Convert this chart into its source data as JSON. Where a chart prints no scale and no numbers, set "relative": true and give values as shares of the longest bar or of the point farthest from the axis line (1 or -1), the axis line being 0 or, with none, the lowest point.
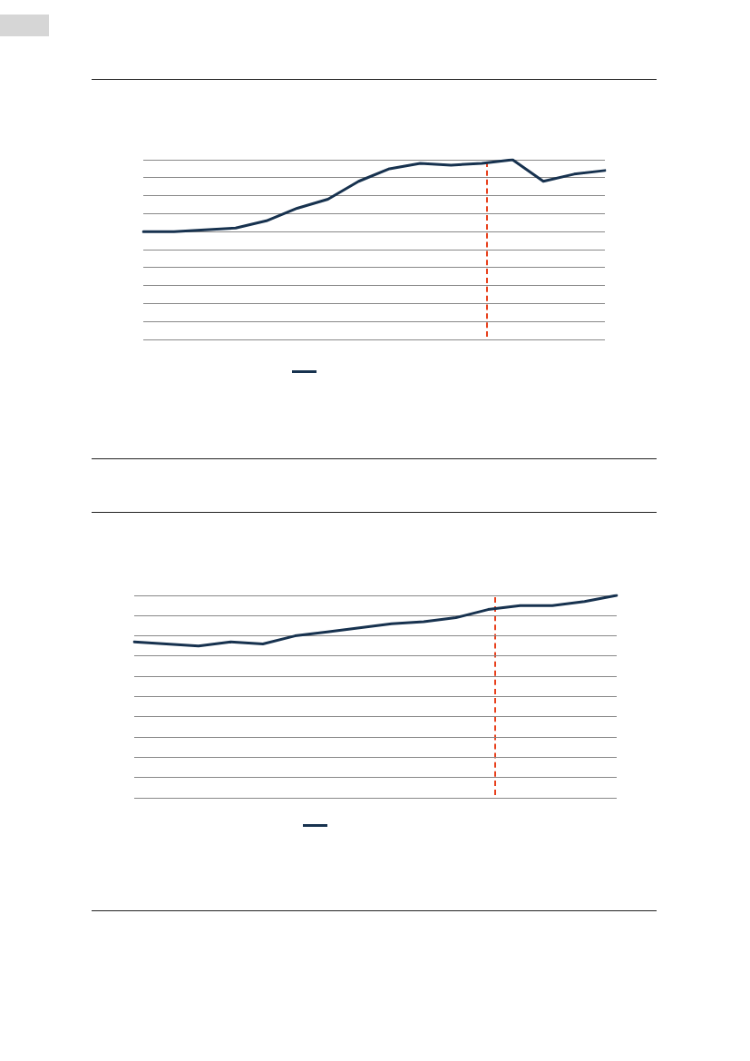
{
  "chart_data": [
    {
      "type": "line",
      "relative": true,
      "categories": [
        null,
        null,
        null,
        null,
        null,
        null,
        null,
        null,
        null,
        null,
        null,
        null,
        null,
        null,
        null,
        null
      ],
      "series": [
        {
          "color": "#17324f",
          "values": [
            0.6,
            0.6,
            0.61,
            0.62,
            0.66,
            0.73,
            0.78,
            0.88,
            0.95,
            0.98,
            0.97,
            0.98,
            1,
            0.88,
            0.92,
            0.94
          ]
        }
      ],
      "grid": "y",
      "marker": "none",
      "line_style": "solid"
    },
    {
      "type": "line",
      "relative": true,
      "categories": [
        null,
        null,
        null,
        null,
        null,
        null,
        null,
        null,
        null,
        null,
        null,
        null,
        null,
        null,
        null,
        null
      ],
      "series": [
        {
          "color": "#17324f",
          "values": [
            0.77,
            0.76,
            0.75,
            0.77,
            0.76,
            0.8,
            0.82,
            0.84,
            0.86,
            0.87,
            0.89,
            0.93,
            0.95,
            0.95,
            0.97,
            1
          ]
        }
      ],
      "grid": "y",
      "marker": "none",
      "line_style": "solid"
    }
  ]
}
